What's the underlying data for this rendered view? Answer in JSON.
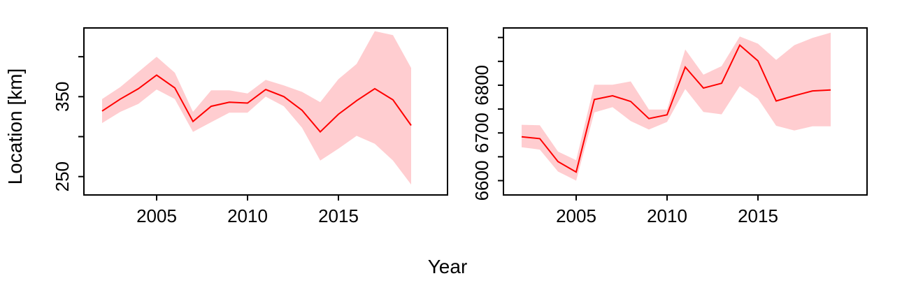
{
  "figure": {
    "shared_xlabel": "Year",
    "shared_ylabel": "Location [km]"
  },
  "chart_data": [
    {
      "type": "line",
      "title": "",
      "xlabel": "",
      "ylabel": "Location [km]",
      "xlim": [
        2001,
        2021
      ],
      "ylim": [
        227,
        436
      ],
      "xticks": [
        2005,
        2010,
        2015
      ],
      "yticks": [
        250,
        300,
        350,
        400
      ],
      "ytick_labels": [
        "250",
        "",
        "350",
        ""
      ],
      "grid": false,
      "color": "#ff0000",
      "band_color": "#ffcdd0",
      "x": [
        2002,
        2003,
        2004,
        2005,
        2006,
        2007,
        2008,
        2009,
        2010,
        2011,
        2012,
        2013,
        2014,
        2015,
        2016,
        2017,
        2018,
        2019
      ],
      "series": [
        {
          "values": [
            332,
            347,
            360,
            377,
            361,
            319,
            338,
            343,
            342,
            359,
            350,
            333,
            306,
            328,
            345,
            360,
            346,
            314
          ],
          "lower": [
            317,
            331,
            341,
            359,
            347,
            306,
            318,
            330,
            330,
            350,
            338,
            311,
            270,
            285,
            301,
            291,
            270,
            240
          ],
          "upper": [
            347,
            362,
            381,
            400,
            380,
            331,
            358,
            358,
            354,
            371,
            364,
            356,
            343,
            372,
            391,
            432,
            427,
            386
          ]
        }
      ]
    },
    {
      "type": "line",
      "title": "",
      "xlabel": "",
      "ylabel": "",
      "xlim": [
        2001,
        2021
      ],
      "ylim": [
        6570,
        6920
      ],
      "xticks": [
        2005,
        2010,
        2015
      ],
      "yticks": [
        6600,
        6650,
        6700,
        6750,
        6800,
        6850,
        6900
      ],
      "ytick_labels": [
        "6600",
        "",
        "6700",
        "",
        "6800",
        "",
        ""
      ],
      "grid": false,
      "color": "#ff0000",
      "band_color": "#ffcdd0",
      "x": [
        2002,
        2003,
        2004,
        2005,
        2006,
        2007,
        2008,
        2009,
        2010,
        2011,
        2012,
        2013,
        2014,
        2015,
        2016,
        2017,
        2018,
        2019
      ],
      "series": [
        {
          "values": [
            6692,
            6688,
            6640,
            6618,
            6770,
            6778,
            6766,
            6730,
            6738,
            6838,
            6794,
            6804,
            6884,
            6851,
            6767,
            6778,
            6788,
            6790
          ],
          "lower": [
            6670,
            6665,
            6619,
            6600,
            6743,
            6754,
            6725,
            6707,
            6723,
            6792,
            6744,
            6739,
            6798,
            6772,
            6715,
            6705,
            6714,
            6714
          ],
          "upper": [
            6717,
            6716,
            6661,
            6643,
            6801,
            6801,
            6808,
            6749,
            6749,
            6875,
            6822,
            6840,
            6902,
            6887,
            6853,
            6884,
            6899,
            6910
          ]
        }
      ]
    }
  ]
}
